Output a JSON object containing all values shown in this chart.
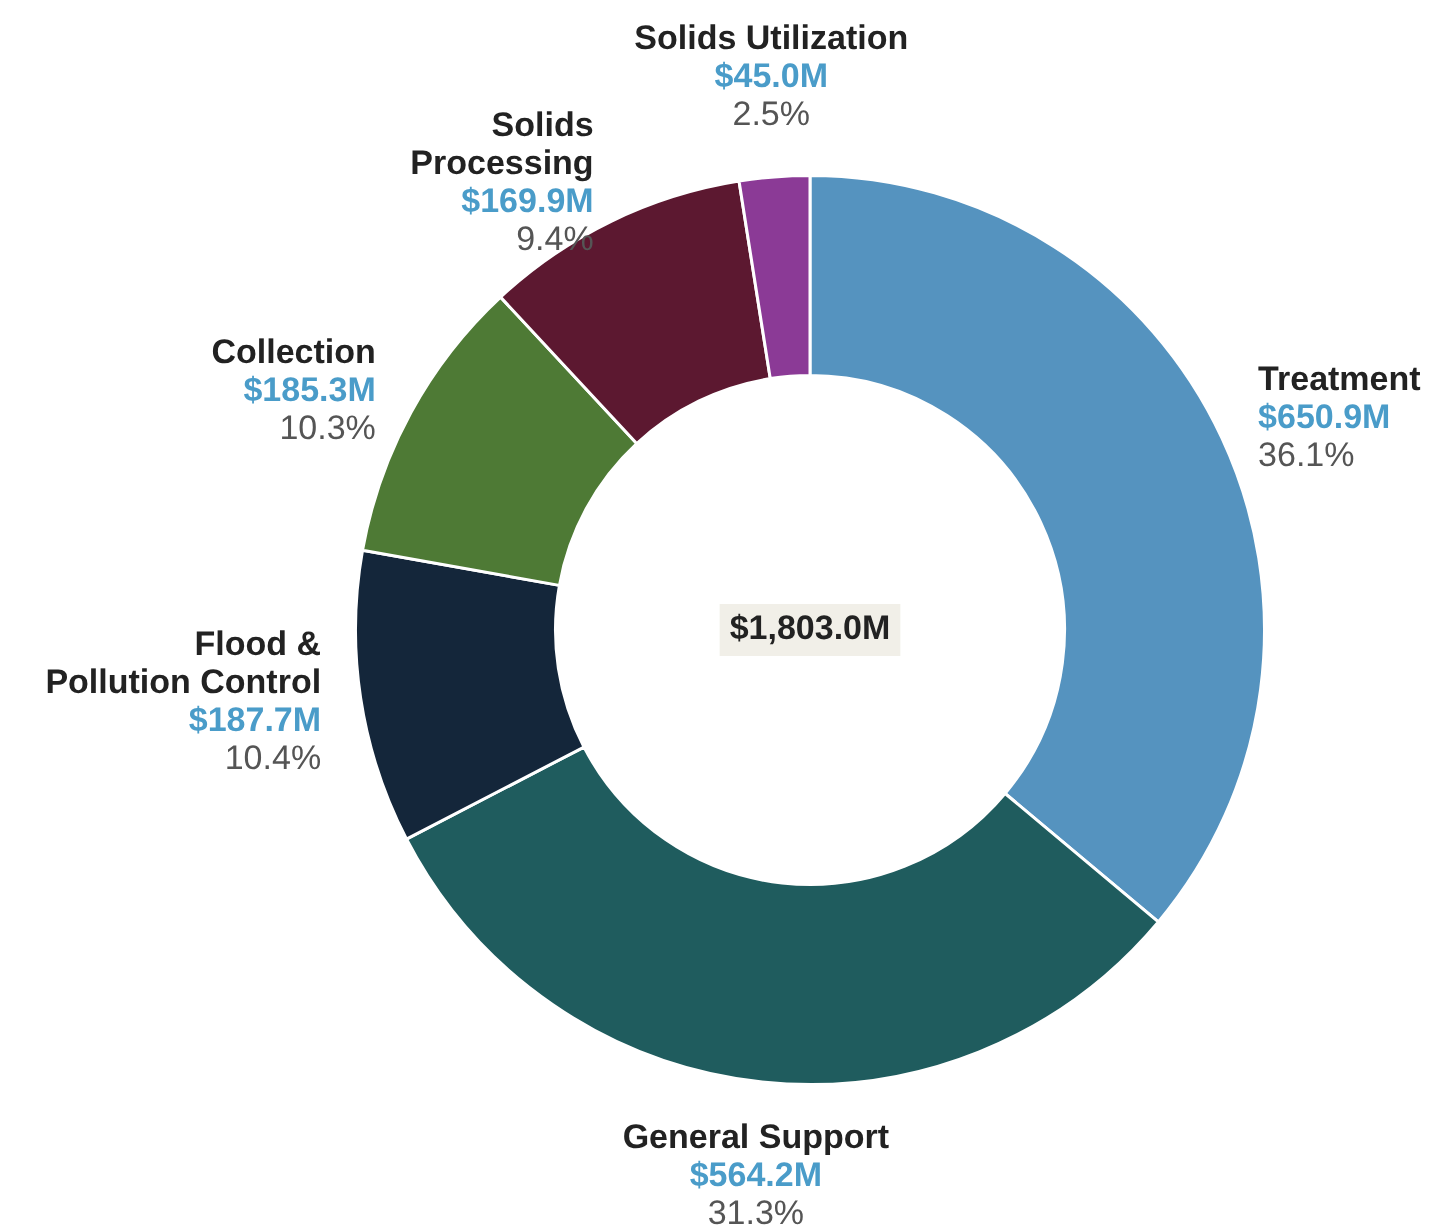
{
  "chart_data": {
    "type": "donut",
    "categories": [
      "Treatment",
      "General Support",
      "Flood & Pollution Control",
      "Collection",
      "Solids Processing",
      "Solids Utilization"
    ],
    "values": [
      650.9,
      564.2,
      187.7,
      185.3,
      169.9,
      45.0
    ],
    "colors": [
      "#5593bf",
      "#1f5c5e",
      "#14263a",
      "#4e7a35",
      "#5c1830",
      "#8b3a96"
    ],
    "value_labels": [
      "$650.9M",
      "$564.2M",
      "$187.7M",
      "$185.3M",
      "$169.9M",
      "$45.0M"
    ],
    "annotations": [
      "$1,803.0M",
      {
        "text": "36.1%",
        "x": "Treatment"
      },
      {
        "text": "31.3%",
        "x": "General Support"
      },
      {
        "text": "10.4%",
        "x": "Flood & Pollution Control"
      },
      {
        "text": "10.3%",
        "x": "Collection"
      },
      {
        "text": "9.4%",
        "x": "Solids Processing"
      },
      {
        "text": "2.5%",
        "x": "Solids Utilization"
      }
    ],
    "legend": false
  }
}
